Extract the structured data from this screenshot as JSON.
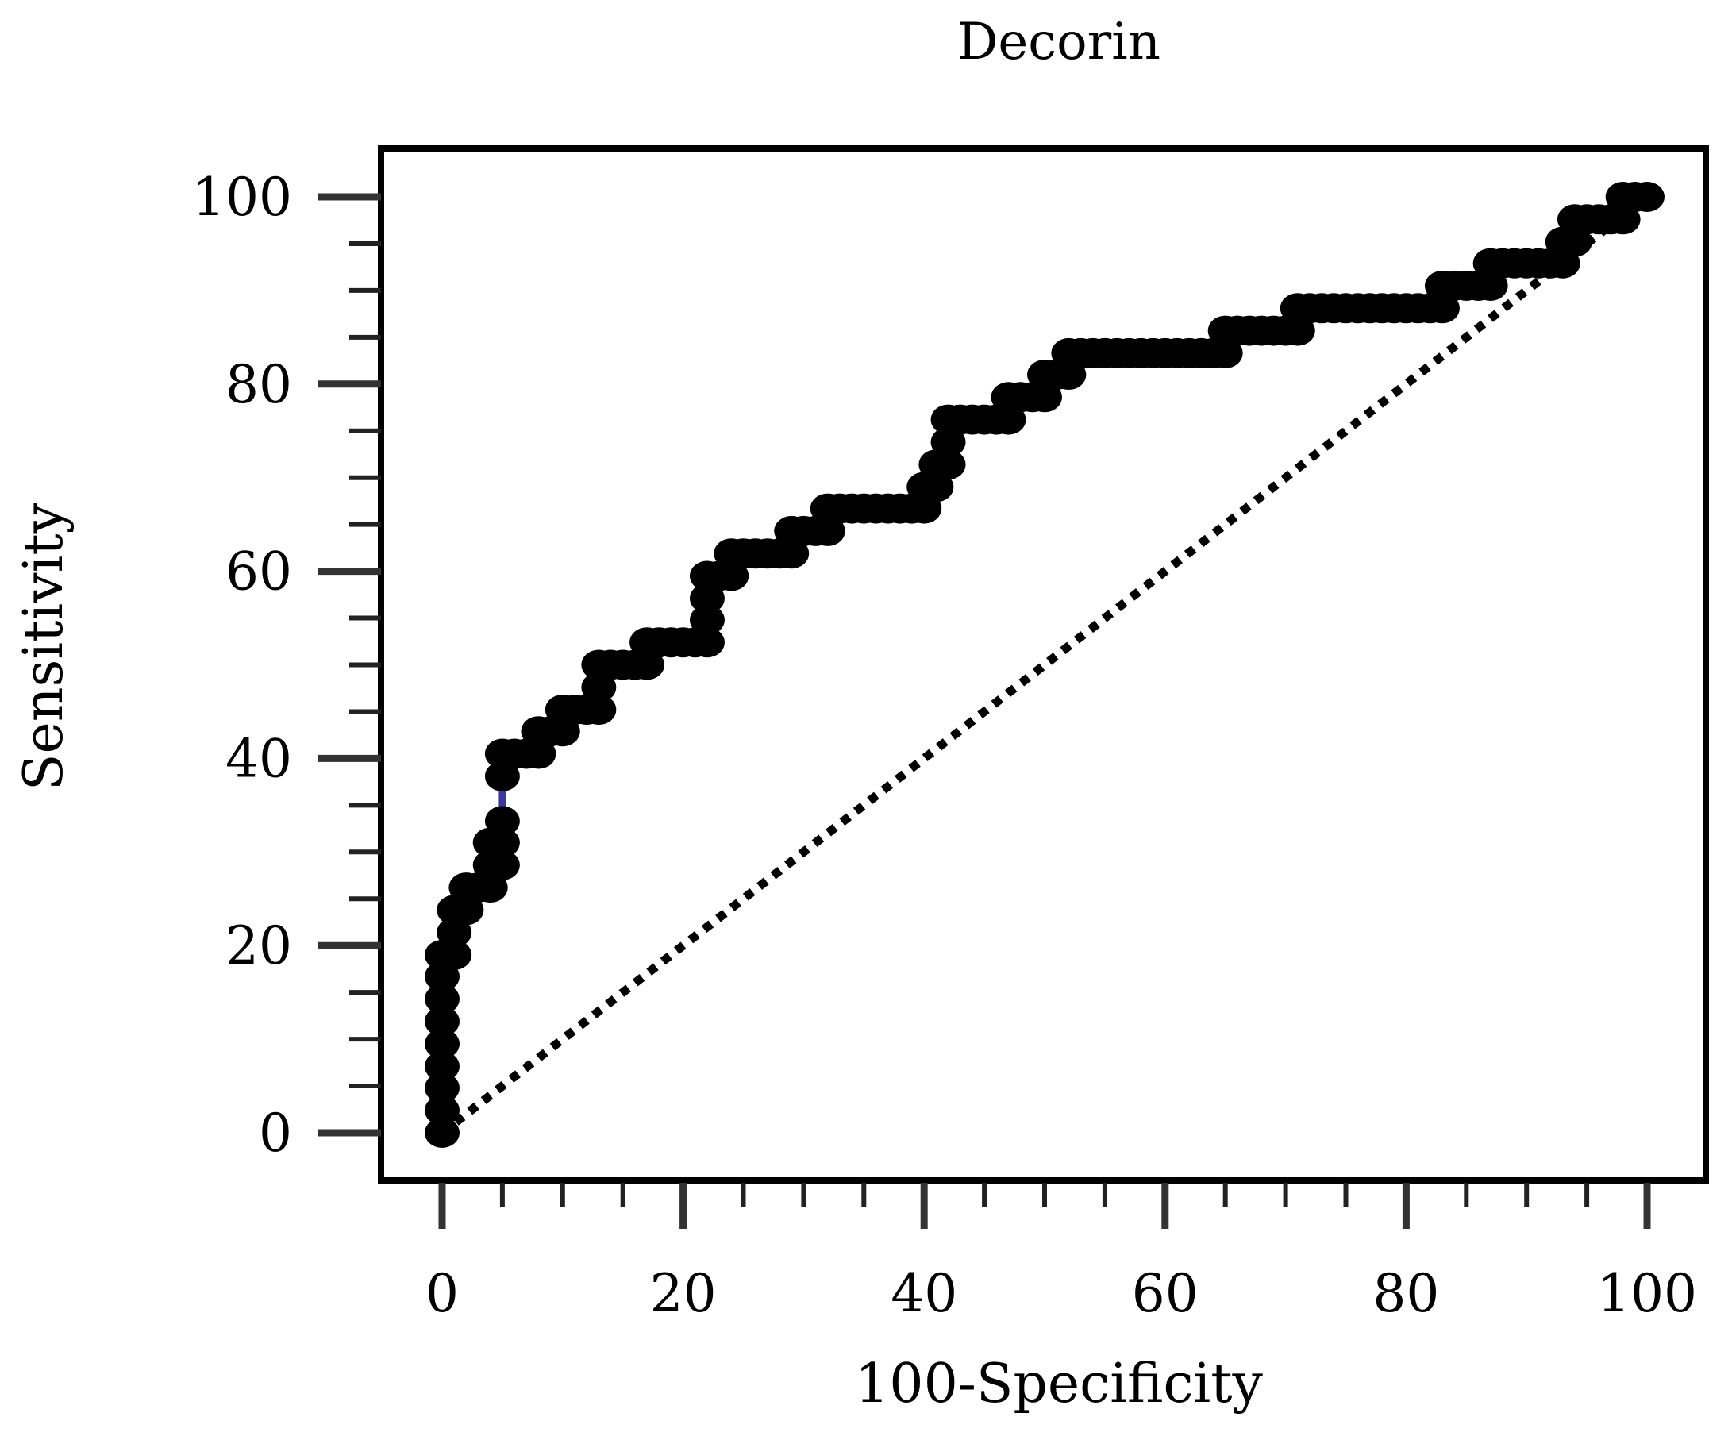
{
  "chart_data": {
    "type": "line",
    "title": "Decorin",
    "xlabel": "100-Specificity",
    "ylabel": "Sensitivity",
    "xlim": [
      0,
      100
    ],
    "ylim": [
      0,
      100
    ],
    "x_ticks": [
      "0",
      "20",
      "40",
      "60",
      "80",
      "100"
    ],
    "y_ticks": [
      "0",
      "20",
      "40",
      "60",
      "80",
      "100"
    ],
    "x_tick_values": [
      0,
      20,
      40,
      60,
      80,
      100
    ],
    "y_tick_values": [
      0,
      20,
      40,
      60,
      80,
      100
    ],
    "x_minor_step": 5,
    "y_minor_step": 5,
    "grid": false,
    "series": [
      {
        "kind": "roc-curve",
        "style": "markers",
        "color": "#000000",
        "points": [
          [
            0,
            0
          ],
          [
            0,
            2.4
          ],
          [
            0,
            4.8
          ],
          [
            0,
            7.1
          ],
          [
            0,
            9.5
          ],
          [
            0,
            11.9
          ],
          [
            0,
            14.3
          ],
          [
            0,
            16.7
          ],
          [
            0,
            19
          ],
          [
            1,
            19
          ],
          [
            1,
            21.4
          ],
          [
            1,
            23.8
          ],
          [
            2,
            23.8
          ],
          [
            2,
            26.2
          ],
          [
            3,
            26.2
          ],
          [
            4,
            26.2
          ],
          [
            4,
            28.6
          ],
          [
            5,
            28.6
          ],
          [
            4,
            31
          ],
          [
            5,
            31
          ],
          [
            5,
            33.3
          ],
          [
            5,
            38.1
          ],
          [
            5,
            40.5
          ],
          [
            6,
            40.5
          ],
          [
            7,
            40.5
          ],
          [
            8,
            40.5
          ],
          [
            8,
            42.9
          ],
          [
            9,
            42.9
          ],
          [
            10,
            42.9
          ],
          [
            10,
            45.2
          ],
          [
            11,
            45.2
          ],
          [
            12,
            45.2
          ],
          [
            13,
            45.2
          ],
          [
            13,
            47.6
          ],
          [
            13,
            50
          ],
          [
            14,
            50
          ],
          [
            15,
            50
          ],
          [
            16,
            50
          ],
          [
            17,
            50
          ],
          [
            17,
            52.4
          ],
          [
            18,
            52.4
          ],
          [
            19,
            52.4
          ],
          [
            20,
            52.4
          ],
          [
            21,
            52.4
          ],
          [
            22,
            52.4
          ],
          [
            22,
            54.8
          ],
          [
            22,
            57.1
          ],
          [
            22,
            59.5
          ],
          [
            23,
            59.5
          ],
          [
            24,
            59.5
          ],
          [
            24,
            61.9
          ],
          [
            25,
            61.9
          ],
          [
            26,
            61.9
          ],
          [
            27,
            61.9
          ],
          [
            28,
            61.9
          ],
          [
            29,
            61.9
          ],
          [
            29,
            64.3
          ],
          [
            30,
            64.3
          ],
          [
            31,
            64.3
          ],
          [
            32,
            64.3
          ],
          [
            32,
            66.7
          ],
          [
            33,
            66.7
          ],
          [
            34,
            66.7
          ],
          [
            35,
            66.7
          ],
          [
            36,
            66.7
          ],
          [
            37,
            66.7
          ],
          [
            38,
            66.7
          ],
          [
            39,
            66.7
          ],
          [
            40,
            66.7
          ],
          [
            40,
            69
          ],
          [
            41,
            69
          ],
          [
            41,
            71.4
          ],
          [
            42,
            71.4
          ],
          [
            42,
            73.8
          ],
          [
            42,
            76.2
          ],
          [
            43,
            76.2
          ],
          [
            44,
            76.2
          ],
          [
            45,
            76.2
          ],
          [
            46,
            76.2
          ],
          [
            47,
            76.2
          ],
          [
            47,
            78.6
          ],
          [
            48,
            78.6
          ],
          [
            49,
            78.6
          ],
          [
            50,
            78.6
          ],
          [
            50,
            81
          ],
          [
            51,
            81
          ],
          [
            52,
            81
          ],
          [
            52,
            83.3
          ],
          [
            53,
            83.3
          ],
          [
            54,
            83.3
          ],
          [
            55,
            83.3
          ],
          [
            56,
            83.3
          ],
          [
            57,
            83.3
          ],
          [
            58,
            83.3
          ],
          [
            59,
            83.3
          ],
          [
            60,
            83.3
          ],
          [
            61,
            83.3
          ],
          [
            62,
            83.3
          ],
          [
            63,
            83.3
          ],
          [
            64,
            83.3
          ],
          [
            65,
            83.3
          ],
          [
            65,
            85.7
          ],
          [
            66,
            85.7
          ],
          [
            67,
            85.7
          ],
          [
            68,
            85.7
          ],
          [
            69,
            85.7
          ],
          [
            70,
            85.7
          ],
          [
            71,
            85.7
          ],
          [
            71,
            88.1
          ],
          [
            72,
            88.1
          ],
          [
            73,
            88.1
          ],
          [
            74,
            88.1
          ],
          [
            75,
            88.1
          ],
          [
            76,
            88.1
          ],
          [
            77,
            88.1
          ],
          [
            78,
            88.1
          ],
          [
            79,
            88.1
          ],
          [
            80,
            88.1
          ],
          [
            81,
            88.1
          ],
          [
            82,
            88.1
          ],
          [
            83,
            88.1
          ],
          [
            83,
            90.5
          ],
          [
            84,
            90.5
          ],
          [
            85,
            90.5
          ],
          [
            86,
            90.5
          ],
          [
            87,
            90.5
          ],
          [
            87,
            92.9
          ],
          [
            88,
            92.9
          ],
          [
            89,
            92.9
          ],
          [
            90,
            92.9
          ],
          [
            91,
            92.9
          ],
          [
            92,
            92.9
          ],
          [
            93,
            92.9
          ],
          [
            93,
            95.2
          ],
          [
            94,
            95.2
          ],
          [
            94,
            97.6
          ],
          [
            95,
            97.6
          ],
          [
            96,
            97.6
          ],
          [
            97,
            97.6
          ],
          [
            98,
            97.6
          ],
          [
            98,
            100
          ],
          [
            99,
            100
          ],
          [
            100,
            100
          ]
        ]
      },
      {
        "kind": "reference",
        "style": "dotted",
        "color": "#000000",
        "points": [
          [
            0,
            0
          ],
          [
            100,
            100
          ]
        ]
      }
    ],
    "highlight_segment": {
      "color": "#3a3a9a",
      "points": [
        [
          5,
          33.3
        ],
        [
          5,
          38.1
        ]
      ]
    }
  }
}
